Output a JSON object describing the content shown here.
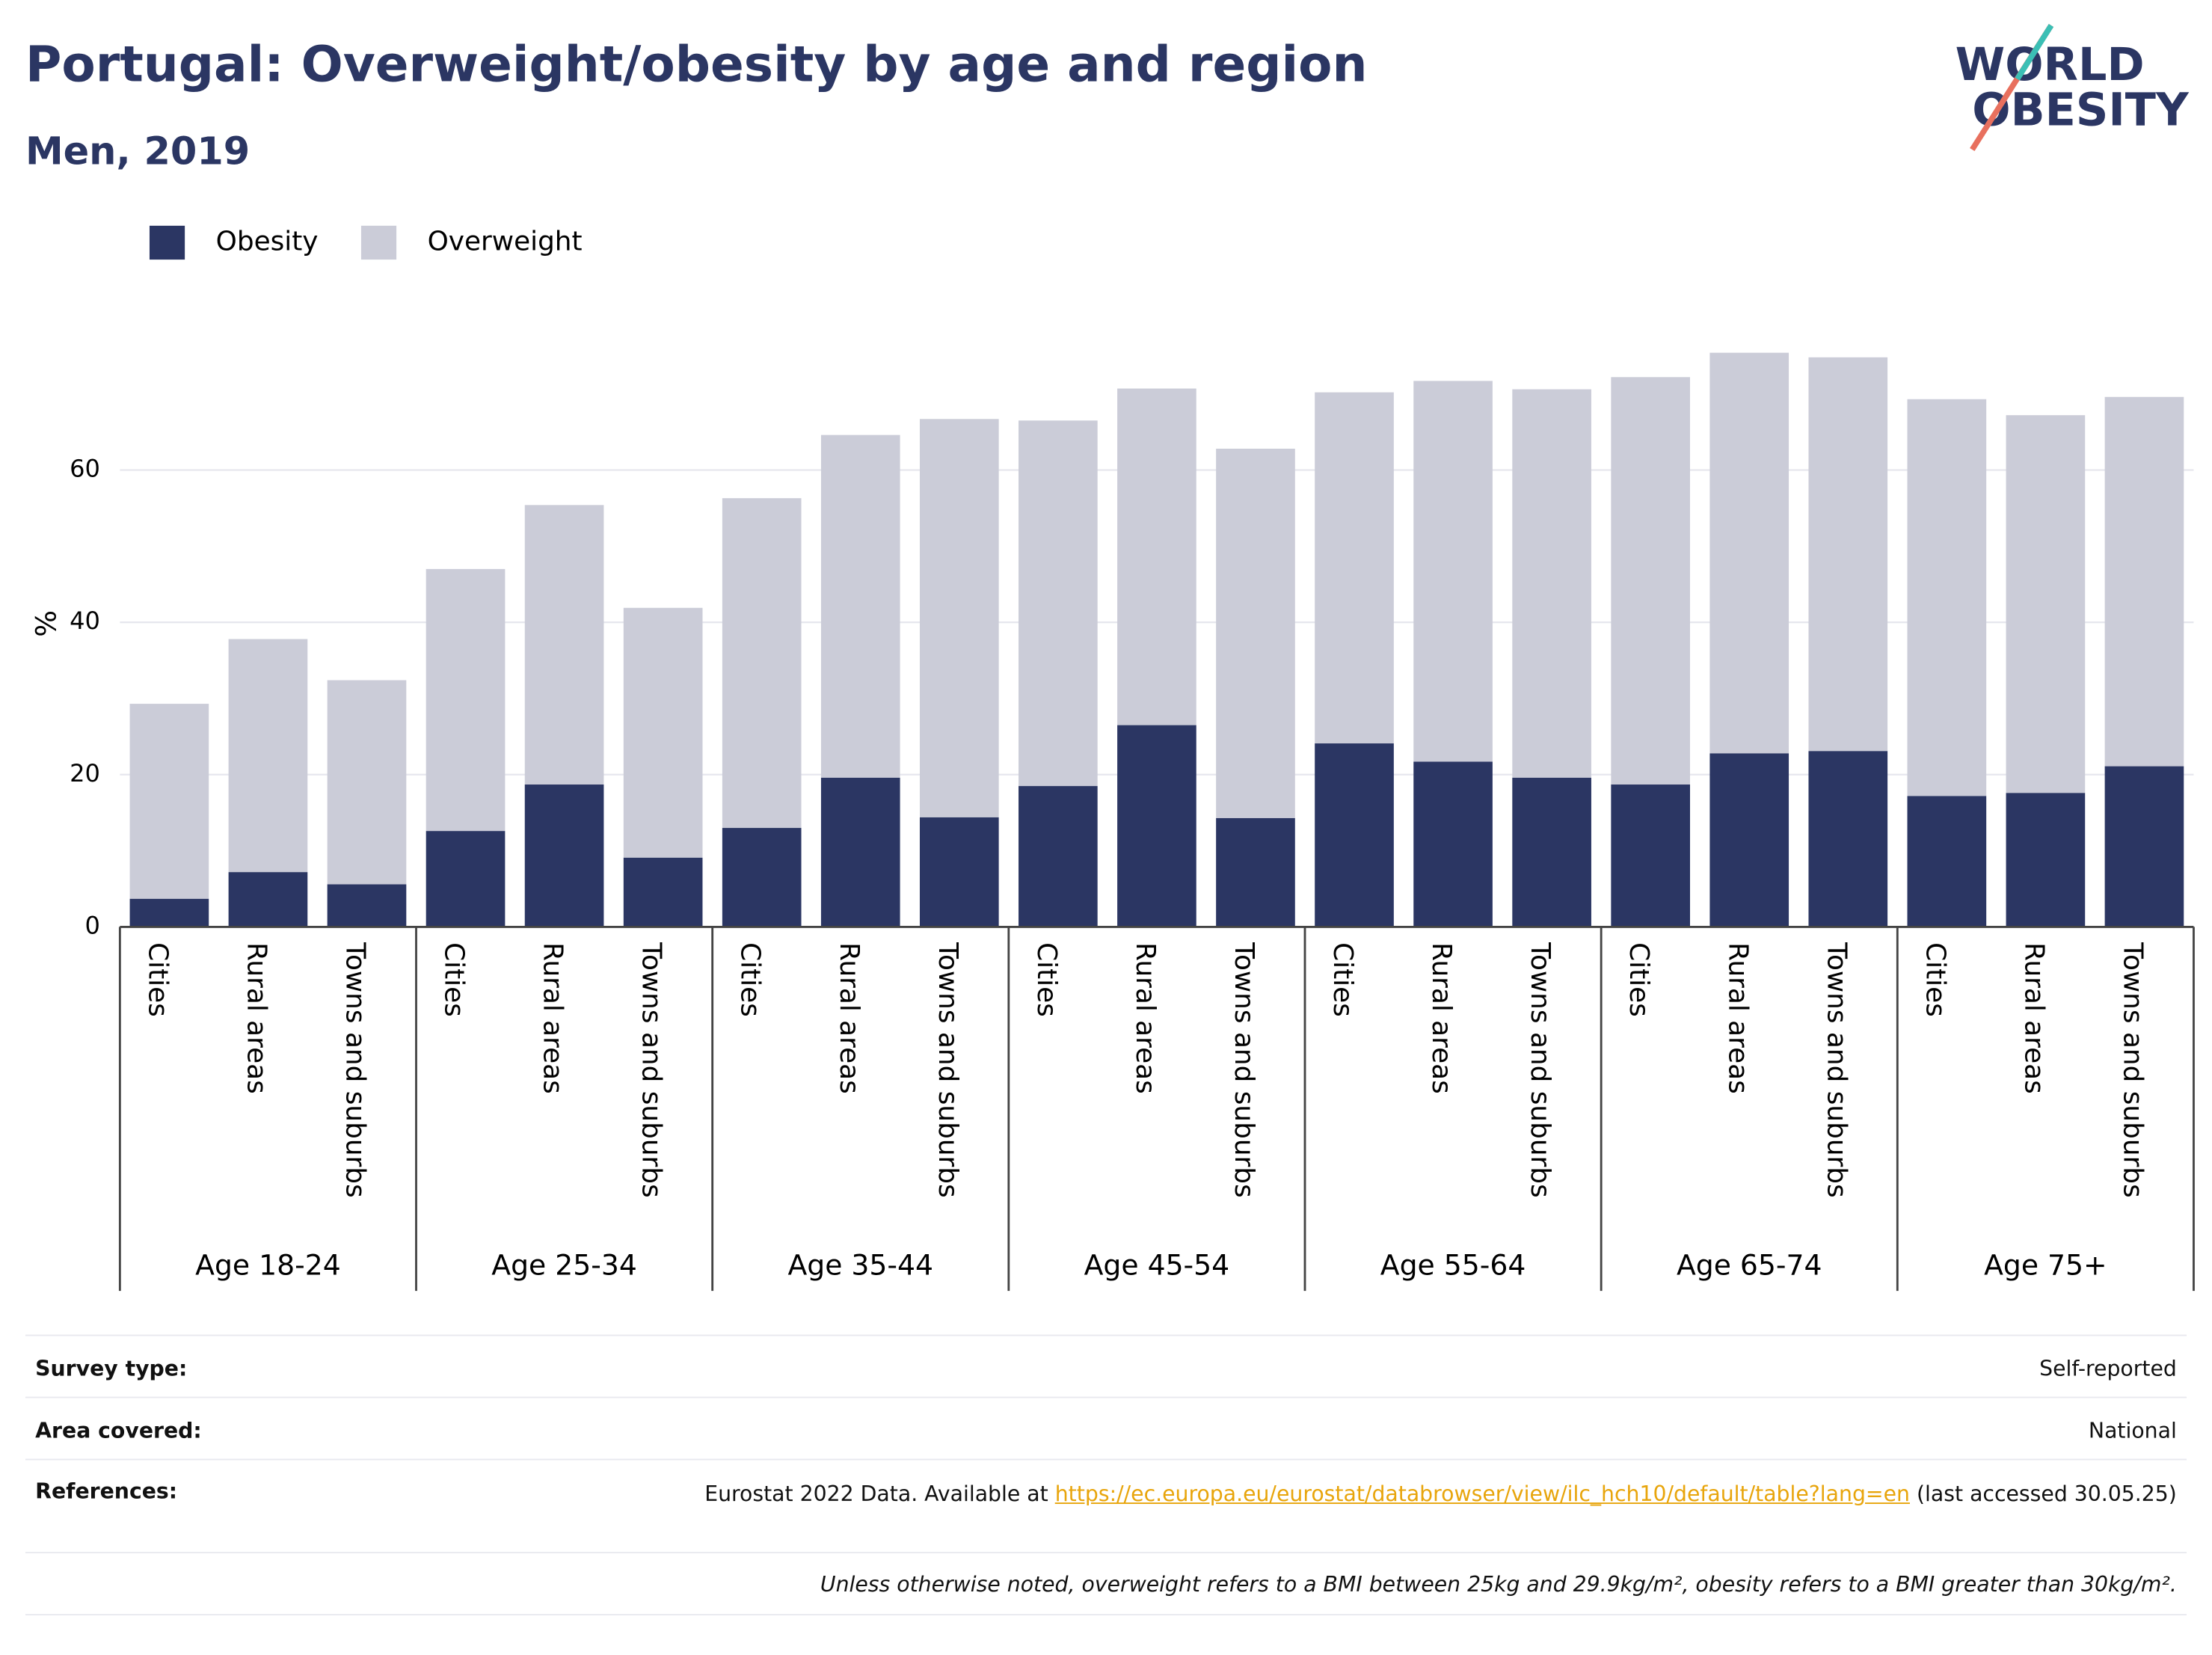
{
  "chart_data": {
    "type": "stacked_bar",
    "title": "Portugal: Overweight/obesity by age and region",
    "subtitle": "Men, 2019",
    "y_label": "%",
    "categories": [
      "Cities",
      "Rural areas",
      "Towns and suburbs",
      "Cities",
      "Rural areas",
      "Towns and suburbs",
      "Cities",
      "Rural areas",
      "Towns and suburbs",
      "Cities",
      "Rural areas",
      "Towns and suburbs",
      "Cities",
      "Rural areas",
      "Towns and suburbs",
      "Cities",
      "Rural areas",
      "Towns and suburbs",
      "Cities",
      "Rural areas",
      "Towns and suburbs"
    ],
    "groups": [
      "Age 18-24",
      "Age 25-34",
      "Age 35-44",
      "Age 45-54",
      "Age 55-64",
      "Age 65-74",
      "Age 75+"
    ],
    "series": [
      {
        "name": "Obesity",
        "color": "#2b3663",
        "values": [
          3.7,
          7.2,
          5.6,
          12.6,
          18.7,
          9.1,
          13.0,
          19.6,
          14.4,
          18.5,
          26.5,
          14.3,
          24.1,
          21.7,
          19.6,
          18.7,
          22.8,
          23.1,
          17.2,
          17.6,
          21.1
        ]
      },
      {
        "name": "Overweight",
        "color": "#cbccd8",
        "values": [
          25.6,
          30.6,
          26.8,
          34.4,
          36.7,
          32.8,
          43.3,
          45.0,
          52.3,
          48.0,
          44.2,
          48.5,
          46.1,
          50.0,
          51.0,
          53.5,
          52.6,
          51.7,
          52.1,
          49.6,
          48.5
        ]
      }
    ],
    "ylim": [
      0,
      78
    ],
    "yticks": [
      0,
      20,
      40,
      60
    ],
    "grid": true
  },
  "logo": {
    "line1": "WORLD",
    "line2": "OBESITY"
  },
  "footer": {
    "survey_type": {
      "label": "Survey type:",
      "value": "Self-reported"
    },
    "area_covered": {
      "label": "Area covered:",
      "value": "National"
    },
    "references": {
      "label": "References:",
      "text": "Eurostat 2022 Data. Available at",
      "link": "https://ec.europa.eu/eurostat/databrowser/view/ilc_hch10/default/table?lang=en",
      "after": "(last accessed 30.05.25)"
    },
    "note": "Unless otherwise noted, overweight refers to a BMI between 25kg and 29.9kg/m², obesity refers to a BMI greater than 30kg/m²."
  }
}
